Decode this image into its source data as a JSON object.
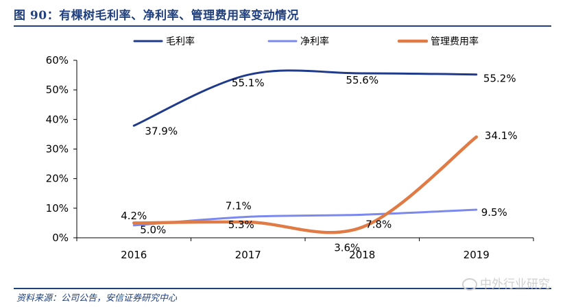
{
  "figure": {
    "title": "图 90：有棵树毛利率、净利率、管理费用率变动情况",
    "source": "资料来源：公司公告，安信证券研究中心",
    "watermark": "中外行业研究"
  },
  "chart_data": {
    "type": "line",
    "title": "",
    "xlabel": "",
    "ylabel": "",
    "categories": [
      "2016",
      "2017",
      "2018",
      "2019"
    ],
    "ylim": [
      0,
      60
    ],
    "yticks": [
      "0%",
      "10%",
      "20%",
      "30%",
      "40%",
      "50%",
      "60%"
    ],
    "legend_position": "top",
    "grid": false,
    "series": [
      {
        "name": "毛利率",
        "color": "#1f3a8a",
        "values": [
          37.9,
          55.1,
          55.6,
          55.2
        ],
        "labels": [
          "37.9%",
          "55.1%",
          "55.6%",
          "55.2%"
        ]
      },
      {
        "name": "净利率",
        "color": "#7b88ee",
        "values": [
          4.2,
          7.1,
          7.8,
          9.5
        ],
        "labels": [
          "4.2%",
          "7.1%",
          "7.8%",
          "9.5%"
        ]
      },
      {
        "name": "管理费用率",
        "color": "#e07b45",
        "values": [
          5.0,
          5.3,
          3.6,
          34.1
        ],
        "labels": [
          "5.0%",
          "5.3%",
          "3.6%",
          "34.1%"
        ]
      }
    ]
  }
}
